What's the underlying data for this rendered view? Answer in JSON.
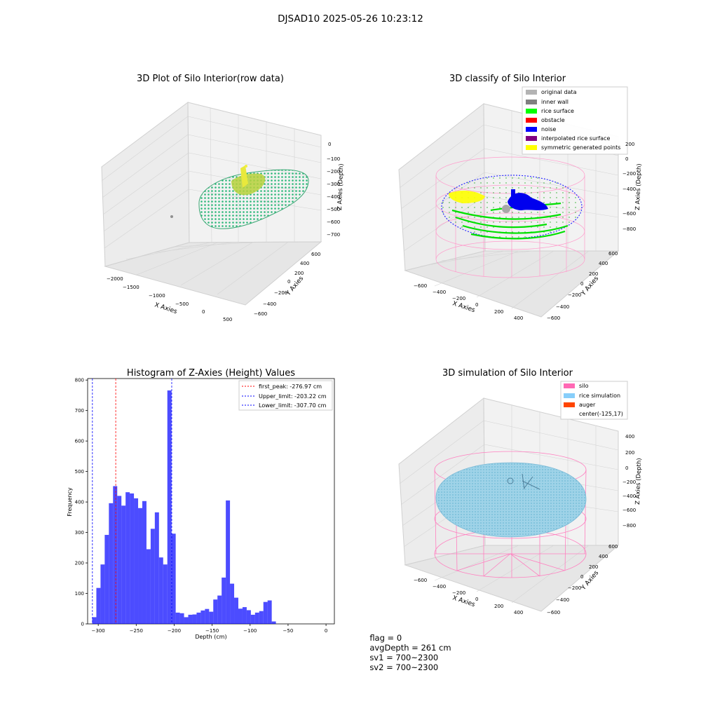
{
  "figure": {
    "suptitle": "DJSAD10 2025-05-26 10:23:12"
  },
  "panel_raw": {
    "title": "3D Plot of Silo Interior(row data)",
    "xlabel": "X Axies",
    "ylabel": "Y Axies",
    "zlabel": "Z Axies (Depth)",
    "xticks": [
      "−2000",
      "−1500",
      "−1000",
      "−500",
      "0",
      "500"
    ],
    "yticks": [
      "−600",
      "−400",
      "−200",
      "0",
      "200",
      "400",
      "600"
    ],
    "zticks": [
      "0",
      "−100",
      "−200",
      "−300",
      "−400",
      "−500",
      "−600",
      "−700"
    ]
  },
  "panel_classify": {
    "title": "3D classify of Silo Interior",
    "xlabel": "X Axies",
    "ylabel": "Y Axies",
    "zlabel": "Z Axies (Depth)",
    "xticks": [
      "−600",
      "−400",
      "−200",
      "0",
      "200",
      "400"
    ],
    "yticks": [
      "−600",
      "−400",
      "−200",
      "0",
      "200",
      "400",
      "600"
    ],
    "zticks": [
      "200",
      "0",
      "−200",
      "−400",
      "−600",
      "−800"
    ],
    "legend": [
      {
        "label": "original data",
        "color": "#b3b3b3"
      },
      {
        "label": "inner wall",
        "color": "#808080"
      },
      {
        "label": "rice surface",
        "color": "#00ff00"
      },
      {
        "label": "obstacle",
        "color": "#ff0000"
      },
      {
        "label": "noise",
        "color": "#0000ff"
      },
      {
        "label": "interpolated rice surface",
        "color": "#800080"
      },
      {
        "label": "symmetric generated points",
        "color": "#ffff00"
      }
    ]
  },
  "panel_sim": {
    "title": "3D simulation of Silo Interior",
    "xlabel": "X Axies",
    "ylabel": "Y Axies",
    "zlabel": "Z Axies (Depth)",
    "xticks": [
      "−600",
      "−400",
      "−200",
      "0",
      "200",
      "400"
    ],
    "yticks": [
      "−600",
      "−400",
      "−200",
      "0",
      "200",
      "400",
      "600"
    ],
    "zticks": [
      "400",
      "200",
      "0",
      "−200",
      "−400",
      "−600",
      "−800"
    ],
    "legend": [
      {
        "label": "silo",
        "color": "#ff69b4"
      },
      {
        "label": "rice simulation",
        "color": "#87cefa"
      },
      {
        "label": "auger",
        "color": "#ff4500"
      },
      {
        "label": "center(-125,17)",
        "color": ""
      }
    ]
  },
  "chart_data": {
    "type": "bar",
    "title": "Histogram of Z-Axies (Height) Values",
    "xlabel": "Depth (cm)",
    "ylabel": "Frequency",
    "xlim": [
      -314,
      11
    ],
    "ylim": [
      0,
      805
    ],
    "xticks": [
      -300,
      -250,
      -200,
      -150,
      -100,
      -50,
      0
    ],
    "xtick_labels": [
      "−300",
      "−250",
      "−200",
      "−150",
      "−100",
      "−50",
      "0"
    ],
    "yticks": [
      0,
      100,
      200,
      300,
      400,
      500,
      600,
      700,
      800
    ],
    "ytick_labels": [
      "0",
      "100",
      "200",
      "300",
      "400",
      "500",
      "600",
      "700",
      "800"
    ],
    "bar_color": "#0000ff",
    "bin_width": 5.5,
    "bin_start": -308,
    "values": [
      22,
      118,
      195,
      292,
      396,
      452,
      420,
      388,
      432,
      428,
      412,
      380,
      403,
      245,
      312,
      366,
      218,
      195,
      766,
      296,
      37,
      35,
      22,
      30,
      31,
      37,
      44,
      49,
      40,
      80,
      93,
      152,
      405,
      132,
      86,
      50,
      55,
      45,
      30,
      37,
      42,
      72,
      77,
      8
    ],
    "lines": [
      {
        "label": "first_peak: -276.97 cm",
        "x": -276.97,
        "color": "#ff0000"
      },
      {
        "label": "Upper_limit: -203.22 cm",
        "x": -203.22,
        "color": "#0000ff"
      },
      {
        "label": "Lower_limit: -307.70 cm",
        "x": -307.7,
        "color": "#0000ff"
      }
    ],
    "legend_position": "top-right"
  },
  "footer": {
    "flag": "flag = 0",
    "avg_depth": "avgDepth = 261 cm",
    "sv1": "sv1 = 700~2300",
    "sv2": "sv2 = 700~2300"
  }
}
